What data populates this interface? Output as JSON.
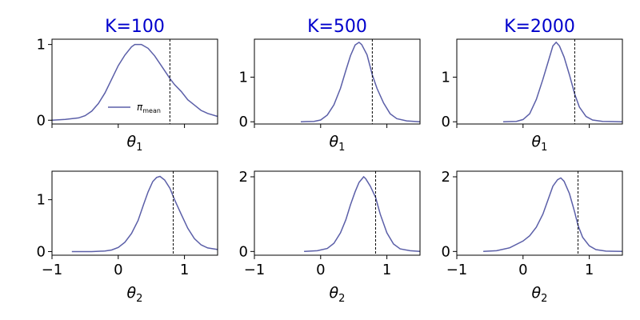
{
  "chart_data": [
    {
      "type": "line",
      "column_title": "K=100",
      "xlabel": "θ",
      "xlabel_sub": "1",
      "xlim": [
        -1.0,
        1.5
      ],
      "ylim": [
        -0.05,
        1.07
      ],
      "yticks": [
        0,
        1
      ],
      "show_xtick_labels": false,
      "marker_x": 0.78,
      "legend": "π",
      "legend_sub": "mean",
      "series": [
        {
          "values": [
            [
              -1.0,
              0.0
            ],
            [
              -0.8,
              0.01
            ],
            [
              -0.6,
              0.03
            ],
            [
              -0.5,
              0.06
            ],
            [
              -0.4,
              0.12
            ],
            [
              -0.3,
              0.22
            ],
            [
              -0.2,
              0.36
            ],
            [
              -0.1,
              0.54
            ],
            [
              0.0,
              0.72
            ],
            [
              0.1,
              0.86
            ],
            [
              0.2,
              0.97
            ],
            [
              0.25,
              1.0
            ],
            [
              0.35,
              1.0
            ],
            [
              0.45,
              0.95
            ],
            [
              0.55,
              0.85
            ],
            [
              0.65,
              0.72
            ],
            [
              0.78,
              0.55
            ],
            [
              0.85,
              0.47
            ],
            [
              0.95,
              0.38
            ],
            [
              1.05,
              0.27
            ],
            [
              1.15,
              0.2
            ],
            [
              1.25,
              0.13
            ],
            [
              1.35,
              0.09
            ],
            [
              1.5,
              0.05
            ]
          ]
        }
      ]
    },
    {
      "type": "line",
      "column_title": "K=500",
      "xlabel": "θ",
      "xlabel_sub": "1",
      "xlim": [
        -1.0,
        1.5
      ],
      "ylim": [
        -0.05,
        1.85
      ],
      "yticks": [
        0,
        1
      ],
      "show_xtick_labels": false,
      "marker_x": 0.78,
      "series": [
        {
          "values": [
            [
              -0.3,
              0.0
            ],
            [
              -0.1,
              0.01
            ],
            [
              0.0,
              0.04
            ],
            [
              0.1,
              0.15
            ],
            [
              0.2,
              0.38
            ],
            [
              0.3,
              0.75
            ],
            [
              0.38,
              1.15
            ],
            [
              0.45,
              1.48
            ],
            [
              0.52,
              1.72
            ],
            [
              0.58,
              1.78
            ],
            [
              0.62,
              1.73
            ],
            [
              0.7,
              1.5
            ],
            [
              0.78,
              1.05
            ],
            [
              0.85,
              0.75
            ],
            [
              0.95,
              0.42
            ],
            [
              1.05,
              0.18
            ],
            [
              1.15,
              0.07
            ],
            [
              1.3,
              0.02
            ],
            [
              1.5,
              0.0
            ]
          ]
        }
      ]
    },
    {
      "type": "line",
      "column_title": "K=2000",
      "xlabel": "θ",
      "xlabel_sub": "1",
      "xlim": [
        -1.0,
        1.5
      ],
      "ylim": [
        -0.05,
        1.85
      ],
      "yticks": [
        0,
        1
      ],
      "show_xtick_labels": false,
      "marker_x": 0.78,
      "series": [
        {
          "values": [
            [
              -0.3,
              0.0
            ],
            [
              -0.1,
              0.01
            ],
            [
              0.0,
              0.05
            ],
            [
              0.1,
              0.18
            ],
            [
              0.2,
              0.5
            ],
            [
              0.3,
              0.95
            ],
            [
              0.38,
              1.35
            ],
            [
              0.45,
              1.7
            ],
            [
              0.5,
              1.78
            ],
            [
              0.55,
              1.7
            ],
            [
              0.62,
              1.45
            ],
            [
              0.7,
              1.05
            ],
            [
              0.78,
              0.62
            ],
            [
              0.85,
              0.33
            ],
            [
              0.95,
              0.12
            ],
            [
              1.05,
              0.04
            ],
            [
              1.2,
              0.01
            ],
            [
              1.5,
              0.0
            ]
          ]
        }
      ]
    },
    {
      "type": "line",
      "xlabel": "θ",
      "xlabel_sub": "2",
      "xlim": [
        -1.0,
        1.5
      ],
      "ylim": [
        -0.07,
        1.55
      ],
      "yticks": [
        0,
        1
      ],
      "xticks": [
        -1,
        0,
        1
      ],
      "xtick_labels": [
        "−1",
        "0",
        "1"
      ],
      "show_xtick_labels": true,
      "marker_x": 0.83,
      "series": [
        {
          "values": [
            [
              -0.7,
              0.0
            ],
            [
              -0.4,
              0.0
            ],
            [
              -0.2,
              0.01
            ],
            [
              -0.1,
              0.03
            ],
            [
              0.0,
              0.08
            ],
            [
              0.1,
              0.18
            ],
            [
              0.2,
              0.35
            ],
            [
              0.3,
              0.6
            ],
            [
              0.38,
              0.9
            ],
            [
              0.45,
              1.15
            ],
            [
              0.52,
              1.35
            ],
            [
              0.58,
              1.43
            ],
            [
              0.63,
              1.45
            ],
            [
              0.7,
              1.38
            ],
            [
              0.78,
              1.22
            ],
            [
              0.85,
              1.0
            ],
            [
              0.95,
              0.72
            ],
            [
              1.05,
              0.45
            ],
            [
              1.15,
              0.25
            ],
            [
              1.25,
              0.13
            ],
            [
              1.35,
              0.07
            ],
            [
              1.5,
              0.04
            ]
          ]
        }
      ]
    },
    {
      "type": "line",
      "xlabel": "θ",
      "xlabel_sub": "2",
      "xlim": [
        -1.0,
        1.5
      ],
      "ylim": [
        -0.1,
        2.15
      ],
      "yticks": [
        0,
        2
      ],
      "xticks": [
        -1,
        0,
        1
      ],
      "xtick_labels": [
        "−1",
        "0",
        "1"
      ],
      "show_xtick_labels": true,
      "marker_x": 0.83,
      "series": [
        {
          "values": [
            [
              -0.25,
              0.0
            ],
            [
              -0.05,
              0.02
            ],
            [
              0.1,
              0.08
            ],
            [
              0.2,
              0.22
            ],
            [
              0.3,
              0.5
            ],
            [
              0.38,
              0.85
            ],
            [
              0.45,
              1.25
            ],
            [
              0.52,
              1.6
            ],
            [
              0.58,
              1.85
            ],
            [
              0.65,
              2.0
            ],
            [
              0.68,
              1.95
            ],
            [
              0.75,
              1.75
            ],
            [
              0.83,
              1.45
            ],
            [
              0.9,
              1.0
            ],
            [
              1.0,
              0.5
            ],
            [
              1.1,
              0.2
            ],
            [
              1.2,
              0.07
            ],
            [
              1.35,
              0.02
            ],
            [
              1.5,
              0.0
            ]
          ]
        }
      ]
    },
    {
      "type": "line",
      "xlabel": "θ",
      "xlabel_sub": "2",
      "xlim": [
        -1.0,
        1.5
      ],
      "ylim": [
        -0.1,
        2.15
      ],
      "yticks": [
        0,
        2
      ],
      "xticks": [
        -1,
        0,
        1
      ],
      "xtick_labels": [
        "−1",
        "0",
        "1"
      ],
      "show_xtick_labels": true,
      "marker_x": 0.83,
      "series": [
        {
          "values": [
            [
              -0.6,
              0.0
            ],
            [
              -0.4,
              0.02
            ],
            [
              -0.2,
              0.1
            ],
            [
              0.0,
              0.28
            ],
            [
              0.1,
              0.42
            ],
            [
              0.2,
              0.65
            ],
            [
              0.3,
              1.0
            ],
            [
              0.38,
              1.4
            ],
            [
              0.45,
              1.75
            ],
            [
              0.52,
              1.92
            ],
            [
              0.57,
              1.97
            ],
            [
              0.62,
              1.88
            ],
            [
              0.7,
              1.55
            ],
            [
              0.78,
              1.05
            ],
            [
              0.83,
              0.7
            ],
            [
              0.9,
              0.38
            ],
            [
              1.0,
              0.15
            ],
            [
              1.1,
              0.05
            ],
            [
              1.25,
              0.01
            ],
            [
              1.5,
              0.0
            ]
          ]
        }
      ]
    }
  ],
  "colors": {
    "line": "#5b5fa8",
    "title": "#0000cc",
    "marker": "#000000",
    "axis": "#000000"
  }
}
